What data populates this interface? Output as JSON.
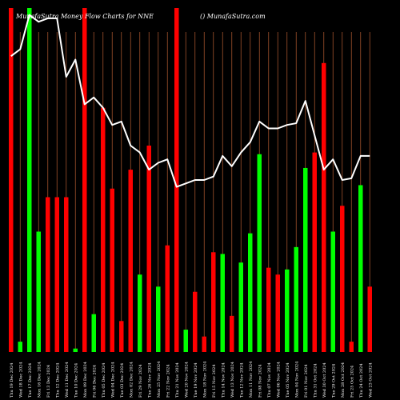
{
  "chart_data": {
    "type": "bar",
    "title_left": "MunafaSutra  Money Flow  Charts for NNE",
    "title_right": "() MunafaSutra.com",
    "colors": {
      "background": "#000000",
      "up": "#00ff00",
      "down": "#ff0000",
      "line": "#ffffff",
      "grid": "#a0522d"
    },
    "categories": [
      "Thu 19 Dec 2024",
      "Wed 18 Dec 2024",
      "Tue 17 Dec 2024",
      "Mon 16 Dec 2024",
      "Fri 13 Dec 2024",
      "Thu 12 Dec 2024",
      "Wed 11 Dec 2024",
      "Tue 10 Dec 2024",
      "Mon 09 Dec 2024",
      "Fri 06 Dec 2024",
      "Thu 05 Dec 2024",
      "Wed 04 Dec 2024",
      "Tue 03 Dec 2024",
      "Mon 02 Dec 2024",
      "Fri 29 Nov 2024",
      "Tue 26 Nov 2024",
      "Mon 25 Nov 2024",
      "Fri 22 Nov 2024",
      "Thu 21 Nov 2024",
      "Wed 20 Nov 2024",
      "Tue 19 Nov 2024",
      "Mon 18 Nov 2024",
      "Fri 15 Nov 2024",
      "Thu 14 Nov 2024",
      "Wed 13 Nov 2024",
      "Tue 12 Nov 2024",
      "Mon 11 Nov 2024",
      "Fri 08 Nov 2024",
      "Thu 07 Nov 2024",
      "Wed 06 Nov 2024",
      "Tue 05 Nov 2024",
      "Mon 04 Nov 2024",
      "Fri 01 Nov 2024",
      "Thu 31 Oct 2024",
      "Wed 30 Oct 2024",
      "Tue 29 Oct 2024",
      "Mon 28 Oct 2024",
      "Fri 25 Oct 2024",
      "Thu 24 Oct 2024",
      "Wed 23 Oct 2024"
    ],
    "bars": [
      {
        "value": 100,
        "color": "red"
      },
      {
        "value": 3,
        "color": "green"
      },
      {
        "value": 100,
        "color": "green"
      },
      {
        "value": 35,
        "color": "green"
      },
      {
        "value": 45,
        "color": "red"
      },
      {
        "value": 45,
        "color": "red"
      },
      {
        "value": 45,
        "color": "red"
      },
      {
        "value": 1,
        "color": "green"
      },
      {
        "value": 100,
        "color": "red"
      },
      {
        "value": 11,
        "color": "green"
      },
      {
        "value": 71,
        "color": "red"
      },
      {
        "value": 47.5,
        "color": "red"
      },
      {
        "value": 9,
        "color": "red"
      },
      {
        "value": 53,
        "color": "red"
      },
      {
        "value": 22.5,
        "color": "green"
      },
      {
        "value": 60,
        "color": "red"
      },
      {
        "value": 19,
        "color": "green"
      },
      {
        "value": 31,
        "color": "red"
      },
      {
        "value": 100,
        "color": "red"
      },
      {
        "value": 6.5,
        "color": "green"
      },
      {
        "value": 17.5,
        "color": "red"
      },
      {
        "value": 4.5,
        "color": "red"
      },
      {
        "value": 29,
        "color": "red"
      },
      {
        "value": 28.5,
        "color": "green"
      },
      {
        "value": 10.5,
        "color": "red"
      },
      {
        "value": 26,
        "color": "green"
      },
      {
        "value": 34.5,
        "color": "green"
      },
      {
        "value": 57.5,
        "color": "green"
      },
      {
        "value": 24.5,
        "color": "red"
      },
      {
        "value": 22.5,
        "color": "red"
      },
      {
        "value": 24,
        "color": "green"
      },
      {
        "value": 30.5,
        "color": "green"
      },
      {
        "value": 53.5,
        "color": "green"
      },
      {
        "value": 58,
        "color": "red"
      },
      {
        "value": 84,
        "color": "red"
      },
      {
        "value": 35,
        "color": "green"
      },
      {
        "value": 42.5,
        "color": "red"
      },
      {
        "value": 3,
        "color": "red"
      },
      {
        "value": 48.5,
        "color": "green"
      },
      {
        "value": 19,
        "color": "red"
      }
    ],
    "line": [
      86,
      88,
      98,
      96,
      97,
      97,
      80,
      85,
      72,
      74,
      71,
      66,
      67,
      60,
      58,
      53,
      55,
      56,
      48,
      49,
      50,
      50,
      51,
      57,
      54,
      58,
      61,
      67,
      65,
      65,
      66,
      66.5,
      73,
      63,
      53,
      56,
      50,
      50.5,
      57,
      57
    ],
    "ylim": [
      0,
      100
    ]
  }
}
